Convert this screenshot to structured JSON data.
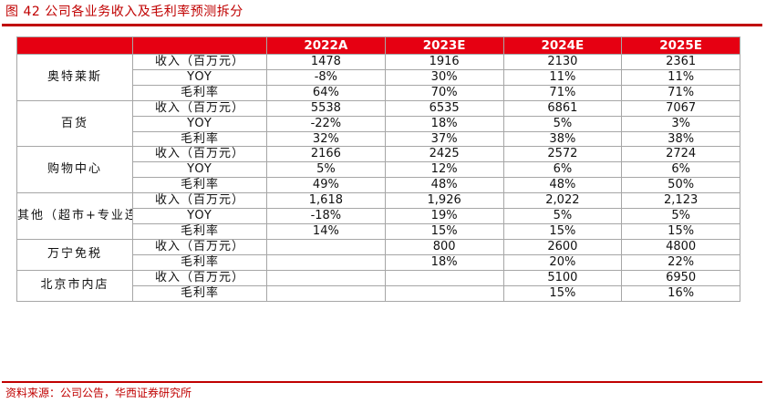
{
  "title": "图 42 公司各业务收入及毛利率预测拆分",
  "source": "资料来源：公司公告，华西证券研究所",
  "table": {
    "columns": [
      "2022A",
      "2023E",
      "2024E",
      "2025E"
    ],
    "groups": [
      {
        "segment": "奥特莱斯",
        "rows": [
          {
            "metric": "收入（百万元）",
            "values": [
              "1478",
              "1916",
              "2130",
              "2361"
            ]
          },
          {
            "metric": "YOY",
            "values": [
              "-8%",
              "30%",
              "11%",
              "11%"
            ]
          },
          {
            "metric": "毛利率",
            "values": [
              "64%",
              "70%",
              "71%",
              "71%"
            ]
          }
        ]
      },
      {
        "segment": "百货",
        "rows": [
          {
            "metric": "收入（百万元）",
            "values": [
              "5538",
              "6535",
              "6861",
              "7067"
            ]
          },
          {
            "metric": "YOY",
            "values": [
              "-22%",
              "18%",
              "5%",
              "3%"
            ]
          },
          {
            "metric": "毛利率",
            "values": [
              "32%",
              "37%",
              "38%",
              "38%"
            ]
          }
        ]
      },
      {
        "segment": "购物中心",
        "rows": [
          {
            "metric": "收入（百万元）",
            "values": [
              "2166",
              "2425",
              "2572",
              "2724"
            ]
          },
          {
            "metric": "YOY",
            "values": [
              "5%",
              "12%",
              "6%",
              "6%"
            ]
          },
          {
            "metric": "毛利率",
            "values": [
              "49%",
              "48%",
              "48%",
              "50%"
            ]
          }
        ]
      },
      {
        "segment": "其他（超市+专业连锁）",
        "rows": [
          {
            "metric": "收入（百万元）",
            "values": [
              "1,618",
              "1,926",
              "2,022",
              "2,123"
            ]
          },
          {
            "metric": "YOY",
            "values": [
              "-18%",
              "19%",
              "5%",
              "5%"
            ]
          },
          {
            "metric": "毛利率",
            "values": [
              "14%",
              "15%",
              "15%",
              "15%"
            ]
          }
        ]
      },
      {
        "segment": "万宁免税",
        "rows": [
          {
            "metric": "收入（百万元）",
            "values": [
              "",
              "800",
              "2600",
              "4800"
            ]
          },
          {
            "metric": "毛利率",
            "values": [
              "",
              "18%",
              "20%",
              "22%"
            ]
          }
        ]
      },
      {
        "segment": "北京市内店",
        "rows": [
          {
            "metric": "收入（百万元）",
            "values": [
              "",
              "",
              "5100",
              "6950"
            ]
          },
          {
            "metric": "毛利率",
            "values": [
              "",
              "",
              "15%",
              "16%"
            ]
          }
        ]
      }
    ]
  }
}
